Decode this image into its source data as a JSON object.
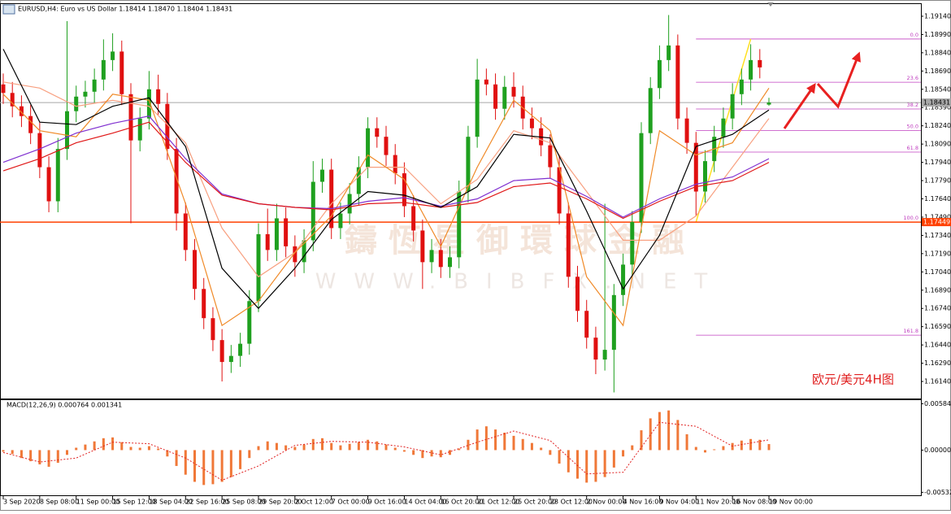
{
  "chart_data": {
    "type": "candlestick",
    "title": "EURUSD,H4: Euro vs US Dollar 1.18414 1.18470 1.18404 1.18431",
    "annotation": "欧元/美元4H图",
    "watermark": [
      "鑄恆星御環球金融",
      "WWW.BIBFX.NET"
    ],
    "up_color": "#1fa01f",
    "down_color": "#e01010",
    "categories": [
      "3 Sep 2020",
      null,
      null,
      null,
      "8 Sep 08:00",
      null,
      null,
      null,
      "11 Sep 00:00",
      null,
      null,
      null,
      "15 Sep 12:00",
      null,
      null,
      null,
      "18 Sep 04:00",
      null,
      null,
      null,
      "22 Sep 16:00",
      null,
      null,
      null,
      "25 Sep 08:00",
      null,
      null,
      null,
      "29 Sep 20:00",
      null,
      null,
      null,
      "2 Oct 12:00",
      null,
      null,
      null,
      "7 Oct 00:00",
      null,
      null,
      null,
      "9 Oct 16:00",
      null,
      null,
      null,
      "14 Oct 04:00",
      null,
      null,
      null,
      "16 Oct 20:00",
      null,
      null,
      null,
      "21 Oct 12:00",
      null,
      null,
      null,
      "25 Oct 20:00",
      null,
      null,
      null,
      "28 Oct 12:00",
      null,
      null,
      null,
      "2 Nov 00:00",
      null,
      null,
      null,
      "4 Nov 16:00",
      null,
      null,
      null,
      "9 Nov 04:00",
      null,
      null,
      null,
      "11 Nov 20:00",
      null,
      null,
      null,
      "16 Nov 08:00",
      null,
      null,
      null,
      "19 Nov 00:00"
    ],
    "candles": [
      [
        1.1858,
        1.1867,
        1.1842,
        1.1851
      ],
      [
        1.1851,
        1.186,
        1.1831,
        1.184
      ],
      [
        1.184,
        1.1849,
        1.1823,
        1.1832
      ],
      [
        1.1832,
        1.1841,
        1.1809,
        1.1818
      ],
      [
        1.1818,
        1.1827,
        1.1781,
        1.179
      ],
      [
        1.179,
        1.1799,
        1.1753,
        1.1762
      ],
      [
        1.1762,
        1.1814,
        1.1753,
        1.1805
      ],
      [
        1.1805,
        1.191,
        1.1796,
        1.1836
      ],
      [
        1.1836,
        1.1857,
        1.1827,
        1.1848
      ],
      [
        1.1848,
        1.1861,
        1.1839,
        1.1852
      ],
      [
        1.1852,
        1.1871,
        1.1843,
        1.1862
      ],
      [
        1.1862,
        1.1895,
        1.1853,
        1.1878
      ],
      [
        1.1878,
        1.19,
        1.1869,
        1.1885
      ],
      [
        1.1885,
        1.1894,
        1.1841,
        1.185
      ],
      [
        1.185,
        1.1859,
        1.1744,
        1.1812
      ],
      [
        1.1812,
        1.1839,
        1.1803,
        1.183
      ],
      [
        1.183,
        1.1869,
        1.1821,
        1.1854
      ],
      [
        1.1854,
        1.1866,
        1.1833,
        1.1842
      ],
      [
        1.1842,
        1.1851,
        1.1796,
        1.1805
      ],
      [
        1.1805,
        1.1814,
        1.1738,
        1.1752
      ],
      [
        1.1752,
        1.1761,
        1.1713,
        1.1722
      ],
      [
        1.1722,
        1.1731,
        1.1681,
        1.169
      ],
      [
        1.169,
        1.1699,
        1.1657,
        1.1666
      ],
      [
        1.1666,
        1.1675,
        1.1639,
        1.1648
      ],
      [
        1.1648,
        1.1657,
        1.1614,
        1.163
      ],
      [
        1.163,
        1.1644,
        1.1621,
        1.1635
      ],
      [
        1.1635,
        1.1654,
        1.1626,
        1.1645
      ],
      [
        1.1645,
        1.1689,
        1.1636,
        1.168
      ],
      [
        1.168,
        1.1744,
        1.1671,
        1.1735
      ],
      [
        1.1735,
        1.1756,
        1.1713,
        1.1722
      ],
      [
        1.1722,
        1.176,
        1.1713,
        1.1748
      ],
      [
        1.1748,
        1.1757,
        1.1716,
        1.1725
      ],
      [
        1.1725,
        1.1734,
        1.17,
        1.1712
      ],
      [
        1.1712,
        1.1739,
        1.1703,
        1.173
      ],
      [
        1.173,
        1.1795,
        1.1721,
        1.1778
      ],
      [
        1.1778,
        1.1797,
        1.1769,
        1.1788
      ],
      [
        1.1788,
        1.1797,
        1.1731,
        1.174
      ],
      [
        1.174,
        1.1761,
        1.1731,
        1.1752
      ],
      [
        1.1752,
        1.1777,
        1.1743,
        1.1768
      ],
      [
        1.1768,
        1.1799,
        1.1759,
        1.179
      ],
      [
        1.179,
        1.1831,
        1.1781,
        1.1822
      ],
      [
        1.1822,
        1.1831,
        1.1806,
        1.1815
      ],
      [
        1.1815,
        1.1824,
        1.1791,
        1.18
      ],
      [
        1.18,
        1.1809,
        1.1776,
        1.1785
      ],
      [
        1.1785,
        1.1794,
        1.1749,
        1.1758
      ],
      [
        1.1758,
        1.1767,
        1.1729,
        1.1738
      ],
      [
        1.1738,
        1.1747,
        1.169,
        1.1712
      ],
      [
        1.1712,
        1.1731,
        1.1703,
        1.1722
      ],
      [
        1.1722,
        1.1731,
        1.1699,
        1.1708
      ],
      [
        1.1708,
        1.1725,
        1.1699,
        1.1716
      ],
      [
        1.1716,
        1.1779,
        1.1707,
        1.177
      ],
      [
        1.177,
        1.1824,
        1.1761,
        1.1815
      ],
      [
        1.1815,
        1.1879,
        1.1806,
        1.1862
      ],
      [
        1.1862,
        1.1871,
        1.1849,
        1.1858
      ],
      [
        1.1858,
        1.1867,
        1.1829,
        1.1838
      ],
      [
        1.1838,
        1.1865,
        1.1829,
        1.1856
      ],
      [
        1.1856,
        1.1868,
        1.1839,
        1.1848
      ],
      [
        1.1848,
        1.1857,
        1.1821,
        1.183
      ],
      [
        1.183,
        1.1839,
        1.1813,
        1.1822
      ],
      [
        1.1822,
        1.1831,
        1.1799,
        1.1808
      ],
      [
        1.1808,
        1.1817,
        1.1781,
        1.179
      ],
      [
        1.179,
        1.1799,
        1.1743,
        1.1752
      ],
      [
        1.1752,
        1.1761,
        1.1691,
        1.17
      ],
      [
        1.17,
        1.1709,
        1.1663,
        1.1672
      ],
      [
        1.1672,
        1.1681,
        1.1641,
        1.165
      ],
      [
        1.165,
        1.1659,
        1.162,
        1.1632
      ],
      [
        1.1632,
        1.176,
        1.1623,
        1.164
      ],
      [
        1.164,
        1.1694,
        1.1605,
        1.1685
      ],
      [
        1.1685,
        1.1719,
        1.1676,
        1.171
      ],
      [
        1.171,
        1.1754,
        1.1701,
        1.1745
      ],
      [
        1.1745,
        1.1827,
        1.1736,
        1.1818
      ],
      [
        1.1818,
        1.1864,
        1.1809,
        1.1855
      ],
      [
        1.1855,
        1.189,
        1.1846,
        1.1878
      ],
      [
        1.1878,
        1.1915,
        1.1869,
        1.189
      ],
      [
        1.189,
        1.1899,
        1.1821,
        1.183
      ],
      [
        1.183,
        1.1839,
        1.1801,
        1.181
      ],
      [
        1.181,
        1.1819,
        1.175,
        1.177
      ],
      [
        1.177,
        1.1804,
        1.1761,
        1.1795
      ],
      [
        1.1795,
        1.1824,
        1.1786,
        1.1815
      ],
      [
        1.1815,
        1.1839,
        1.1806,
        1.183
      ],
      [
        1.183,
        1.1859,
        1.1821,
        1.185
      ],
      [
        1.185,
        1.1871,
        1.1841,
        1.1862
      ],
      [
        1.1862,
        1.1891,
        1.1853,
        1.1878
      ],
      [
        1.1878,
        1.1887,
        1.1863,
        1.1872
      ],
      [
        1.18414,
        1.1847,
        1.18404,
        1.18431
      ]
    ],
    "ylim": [
      1.16,
      1.1924
    ],
    "yticks": [
      {
        "value": 1.1914,
        "label": "1.19140"
      },
      {
        "value": 1.1899,
        "label": "1.18990"
      },
      {
        "value": 1.1884,
        "label": "1.18840"
      },
      {
        "value": 1.1869,
        "label": "1.18690"
      },
      {
        "value": 1.1854,
        "label": "1.18540"
      },
      {
        "value": 1.1839,
        "label": "1.18390"
      },
      {
        "value": 1.1824,
        "label": "1.18240"
      },
      {
        "value": 1.1809,
        "label": "1.18090"
      },
      {
        "value": 1.1794,
        "label": "1.17940"
      },
      {
        "value": 1.1779,
        "label": "1.17790"
      },
      {
        "value": 1.1764,
        "label": "1.17640"
      },
      {
        "value": 1.1749,
        "label": "1.17490"
      },
      {
        "value": 1.1734,
        "label": "1.17340"
      },
      {
        "value": 1.1719,
        "label": "1.17190"
      },
      {
        "value": 1.1704,
        "label": "1.17040"
      },
      {
        "value": 1.1689,
        "label": "1.16890"
      },
      {
        "value": 1.1674,
        "label": "1.16740"
      },
      {
        "value": 1.1659,
        "label": "1.16590"
      },
      {
        "value": 1.1644,
        "label": "1.16440"
      },
      {
        "value": 1.1629,
        "label": "1.16290"
      },
      {
        "value": 1.1614,
        "label": "1.16140"
      }
    ],
    "price_lines": [
      {
        "price": 1.18431,
        "color": "#a8a8a8"
      },
      {
        "price": 1.17449,
        "color": "#ff4000"
      }
    ],
    "fib": {
      "color": "#c040c0",
      "line_color": "#ffe020",
      "from": [
        76,
        1.17449
      ],
      "to": [
        82,
        1.18953
      ],
      "levels": [
        {
          "label": "0.0",
          "price": 1.18953
        },
        {
          "label": "23.6",
          "price": 1.18598
        },
        {
          "label": "38.2",
          "price": 1.18378
        },
        {
          "label": "50.0",
          "price": 1.18201
        },
        {
          "label": "61.8",
          "price": 1.18024
        },
        {
          "label": "100.0",
          "price": 1.17449
        },
        {
          "label": "161.8",
          "price": 1.1652
        }
      ]
    },
    "ma": [
      {
        "color": "#f8a080",
        "x": [
          0,
          4,
          8,
          12,
          16,
          20,
          24,
          28,
          32,
          36,
          40,
          44,
          48,
          52,
          56,
          60,
          64,
          68,
          72,
          76,
          80,
          84
        ],
        "values": [
          1.186,
          1.1855,
          1.184,
          1.1845,
          1.184,
          1.181,
          1.174,
          1.17,
          1.172,
          1.176,
          1.179,
          1.179,
          1.176,
          1.178,
          1.182,
          1.181,
          1.177,
          1.173,
          1.173,
          1.175,
          1.179,
          1.183
        ]
      },
      {
        "color": "#f08a28",
        "x": [
          0,
          4,
          8,
          12,
          16,
          20,
          24,
          28,
          32,
          36,
          40,
          44,
          48,
          52,
          56,
          60,
          64,
          68,
          72,
          76,
          80,
          84
        ],
        "values": [
          1.185,
          1.182,
          1.1815,
          1.185,
          1.1845,
          1.176,
          1.166,
          1.168,
          1.172,
          1.175,
          1.18,
          1.178,
          1.1725,
          1.179,
          1.1845,
          1.182,
          1.17,
          1.166,
          1.182,
          1.18,
          1.181,
          1.1855
        ]
      },
      {
        "color": "#8030d0",
        "x": [
          0,
          4,
          8,
          12,
          16,
          20,
          24,
          28,
          32,
          36,
          40,
          44,
          48,
          52,
          56,
          60,
          64,
          68,
          72,
          76,
          80,
          84
        ],
        "values": [
          1.1794,
          1.1805,
          1.1818,
          1.1826,
          1.1832,
          1.1797,
          1.1768,
          1.176,
          1.1757,
          1.1756,
          1.1762,
          1.1765,
          1.1758,
          1.1764,
          1.1779,
          1.1781,
          1.1766,
          1.1749,
          1.1764,
          1.1776,
          1.1782,
          1.1797
        ]
      },
      {
        "color": "#e01818",
        "x": [
          0,
          4,
          8,
          12,
          16,
          20,
          24,
          28,
          32,
          36,
          40,
          44,
          48,
          52,
          56,
          60,
          64,
          68,
          72,
          76,
          80,
          84
        ],
        "values": [
          1.1787,
          1.1797,
          1.181,
          1.1818,
          1.1827,
          1.1794,
          1.1767,
          1.176,
          1.1757,
          1.1755,
          1.176,
          1.1761,
          1.1757,
          1.1761,
          1.1774,
          1.1777,
          1.1764,
          1.1748,
          1.1762,
          1.1774,
          1.1779,
          1.1794
        ]
      },
      {
        "color": "#000000",
        "x": [
          0,
          4,
          8,
          12,
          16,
          20,
          24,
          28,
          32,
          36,
          40,
          44,
          48,
          52,
          56,
          60,
          64,
          68,
          72,
          76,
          80,
          84
        ],
        "values": [
          1.1887,
          1.1827,
          1.1825,
          1.184,
          1.1847,
          1.1807,
          1.1707,
          1.1674,
          1.1707,
          1.1747,
          1.177,
          1.1767,
          1.1757,
          1.1774,
          1.1817,
          1.1814,
          1.1754,
          1.169,
          1.1734,
          1.1807,
          1.1817,
          1.1837
        ]
      }
    ],
    "macd": {
      "title": "MACD(12,26,9) 0.000764 0.001341",
      "color": "#f07838",
      "ylim": [
        -0.0058,
        0.0063
      ],
      "yticks": [
        0.005845,
        {
          "value": 0,
          "label": "0.000000"
        },
        -0.005321
      ],
      "histogram": [
        -0.0002,
        -0.0005,
        -0.001,
        -0.0014,
        -0.0018,
        -0.0021,
        -0.0016,
        -0.0006,
        0.0003,
        0.0007,
        0.0011,
        0.0015,
        0.0016,
        0.001,
        0.0004,
        0.0003,
        0.0005,
        0.0002,
        -0.0008,
        -0.002,
        -0.0031,
        -0.004,
        -0.0044,
        -0.0043,
        -0.004,
        -0.0034,
        -0.0024,
        -0.001,
        0.0005,
        0.0011,
        0.0009,
        0.0006,
        0.0004,
        0.0007,
        0.0014,
        0.0015,
        0.0009,
        0.0006,
        0.0008,
        0.001,
        0.0013,
        0.0011,
        0.0007,
        0.0003,
        -0.0002,
        -0.0006,
        -0.001,
        -0.0008,
        -0.0009,
        -0.0006,
        0.0002,
        0.0013,
        0.0026,
        0.003,
        0.0026,
        0.0022,
        0.0018,
        0.0014,
        0.0009,
        0.0003,
        -0.0006,
        -0.0017,
        -0.0028,
        -0.0036,
        -0.0041,
        -0.004,
        -0.0034,
        -0.0022,
        -0.0008,
        0.0006,
        0.0025,
        0.004,
        0.0048,
        0.005,
        0.0038,
        0.002,
        0.0004,
        -0.0003,
        0.0001,
        0.0005,
        0.0009,
        0.0012,
        0.0014,
        0.0013,
        0.00076
      ],
      "signal": {
        "color": "#e02020",
        "x": [
          0,
          4,
          8,
          12,
          16,
          20,
          24,
          28,
          32,
          36,
          40,
          44,
          48,
          52,
          56,
          60,
          64,
          68,
          72,
          76,
          80,
          84
        ],
        "values": [
          -0.0003,
          -0.0015,
          -0.001,
          0.001,
          0.0008,
          -0.001,
          -0.0038,
          -0.002,
          0.0006,
          0.0011,
          0.001,
          0.0004,
          -0.0006,
          0.001,
          0.0024,
          0.0012,
          -0.003,
          -0.0028,
          0.0035,
          0.003,
          0.0005,
          0.0013
        ]
      }
    }
  }
}
